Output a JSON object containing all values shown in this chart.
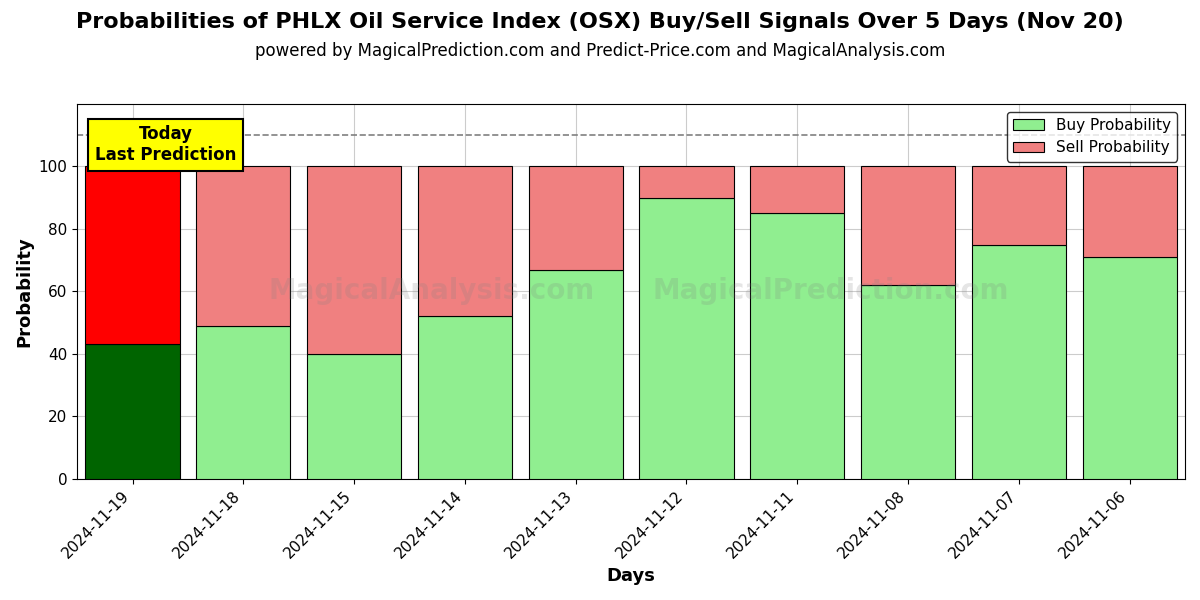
{
  "title": "Probabilities of PHLX Oil Service Index (OSX) Buy/Sell Signals Over 5 Days (Nov 20)",
  "subtitle": "powered by MagicalPrediction.com and Predict-Price.com and MagicalAnalysis.com",
  "xlabel": "Days",
  "ylabel": "Probability",
  "watermark1": "MagicalAnalysis.com",
  "watermark2": "MagicalPrediction.com",
  "categories": [
    "2024-11-19",
    "2024-11-18",
    "2024-11-15",
    "2024-11-14",
    "2024-11-13",
    "2024-11-12",
    "2024-11-11",
    "2024-11-08",
    "2024-11-07",
    "2024-11-06"
  ],
  "buy_values": [
    43,
    49,
    40,
    52,
    67,
    90,
    85,
    62,
    75,
    71
  ],
  "sell_values": [
    57,
    51,
    60,
    48,
    33,
    10,
    15,
    38,
    25,
    29
  ],
  "today_buy_color": "#006400",
  "today_sell_color": "#FF0000",
  "buy_color": "#90EE90",
  "sell_color": "#F08080",
  "bar_edge_color": "#000000",
  "ylim": [
    0,
    120
  ],
  "yticks": [
    0,
    20,
    40,
    60,
    80,
    100
  ],
  "dashed_line_y": 110,
  "annotation_text": "Today\nLast Prediction",
  "annotation_box_color": "#FFFF00",
  "legend_buy_label": "Buy Probability",
  "legend_sell_label": "Sell Probability",
  "title_fontsize": 16,
  "subtitle_fontsize": 12,
  "label_fontsize": 13,
  "tick_fontsize": 11,
  "background_color": "#ffffff",
  "grid_color": "#cccccc"
}
